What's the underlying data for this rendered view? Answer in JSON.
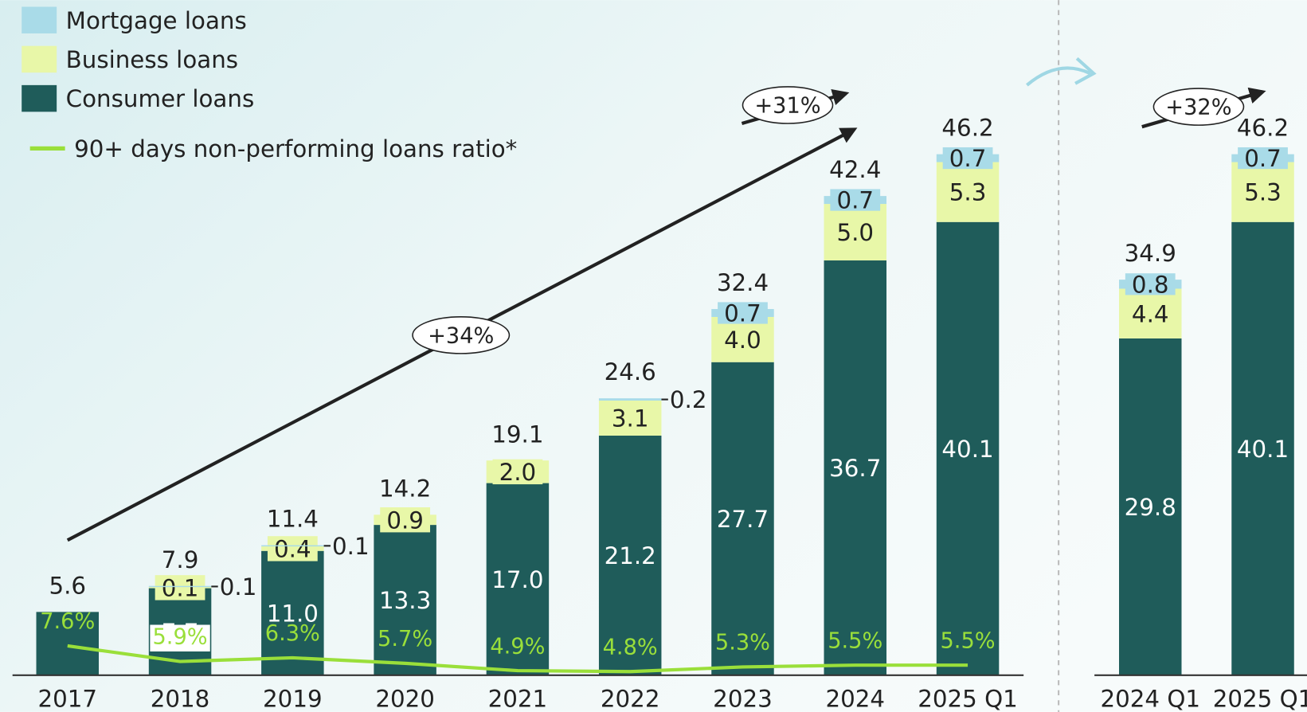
{
  "chart_data": [
    {
      "type": "bar",
      "stacked": true,
      "categories": [
        "2017",
        "2018",
        "2019",
        "2020",
        "2021",
        "2022",
        "2023",
        "2024",
        "2025 Q1"
      ],
      "ylim": [
        0,
        50
      ],
      "y2lim": [
        4.4,
        66
      ],
      "series": [
        {
          "name": "Consumer loans",
          "color": "#1f5c5a",
          "values": [
            5.6,
            7.7,
            11.0,
            13.3,
            17.0,
            21.2,
            27.7,
            36.7,
            40.1
          ],
          "value_labels": [
            null,
            "7.7",
            "11.0",
            "13.3",
            "17.0",
            "21.2",
            "27.7",
            "36.7",
            "40.1"
          ]
        },
        {
          "name": "Business loans",
          "color": "#e8f7a8",
          "values": [
            null,
            0.1,
            0.4,
            0.9,
            2.0,
            3.1,
            4.0,
            5.0,
            5.3
          ],
          "value_labels": [
            null,
            "0.1",
            "0.4",
            "0.9",
            "2.0",
            "3.1",
            "4.0",
            "5.0",
            "5.3"
          ]
        },
        {
          "name": "Mortgage loans",
          "color": "#a9dbe8",
          "values": [
            null,
            0.1,
            0.1,
            null,
            null,
            0.2,
            0.7,
            0.7,
            0.7
          ],
          "value_labels": [
            null,
            "0.1",
            "0.1",
            null,
            null,
            "0.2",
            "0.7",
            "0.7",
            "0.7"
          ]
        },
        {
          "name": "90+ days non-performing loans ratio*",
          "type": "line",
          "axis": "y2",
          "color": "#9adf3a",
          "values": [
            7.6,
            5.9,
            6.3,
            5.7,
            4.9,
            4.8,
            5.3,
            5.5,
            5.5
          ],
          "value_labels": [
            "7.6%",
            "5.9%",
            "6.3%",
            "5.7%",
            "4.9%",
            "4.8%",
            "5.3%",
            "5.5%",
            "5.5%"
          ]
        }
      ],
      "totals": [
        5.6,
        7.9,
        11.4,
        14.2,
        19.1,
        24.6,
        32.4,
        42.4,
        46.2
      ],
      "annotations": [
        "+34%",
        "+31%"
      ]
    },
    {
      "type": "bar",
      "stacked": true,
      "categories": [
        "2024 Q1",
        "2025 Q1"
      ],
      "ylim": [
        0,
        50
      ],
      "series": [
        {
          "color": "#1f5c5a",
          "values": [
            29.8,
            40.1
          ],
          "value_labels": [
            "29.8",
            "40.1"
          ]
        },
        {
          "color": "#e8f7a8",
          "values": [
            4.4,
            5.3
          ],
          "value_labels": [
            "4.4",
            "5.3"
          ]
        },
        {
          "color": "#a9dbe8",
          "values": [
            0.8,
            0.7
          ],
          "value_labels": [
            "0.8",
            "0.7"
          ]
        }
      ],
      "totals": [
        34.9,
        46.2
      ],
      "annotations": [
        "+32%"
      ]
    }
  ]
}
